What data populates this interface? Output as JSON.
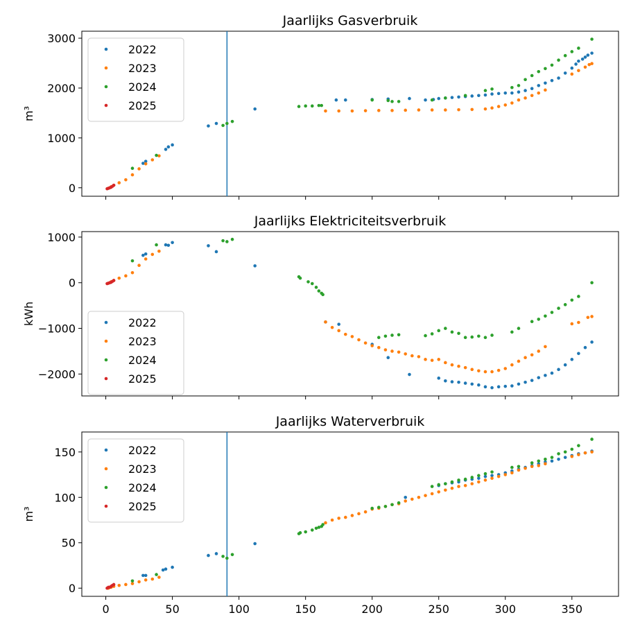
{
  "chart_data": [
    {
      "type": "scatter",
      "title": "Jaarlijks Gasverbruik",
      "ylabel": "m³",
      "xlabel": "",
      "xlim": [
        -18,
        385
      ],
      "ylim": [
        -170,
        3140
      ],
      "yticks": [
        0,
        1000,
        2000,
        3000
      ],
      "xticks": [
        0,
        50,
        100,
        150,
        200,
        250,
        300,
        350
      ],
      "vline_x": 91,
      "legend_position": "top-left",
      "series": [
        {
          "name": "2022",
          "color": "#1f77b4",
          "x": [
            28,
            30,
            45,
            47,
            50,
            77,
            83,
            112,
            173,
            180,
            200,
            212,
            228,
            240,
            246,
            250,
            255,
            260,
            265,
            270,
            275,
            280,
            285,
            290,
            295,
            300,
            305,
            310,
            315,
            320,
            325,
            330,
            335,
            340,
            345,
            350,
            353,
            355,
            358,
            360,
            362,
            365
          ],
          "y": [
            490,
            530,
            770,
            820,
            860,
            1240,
            1290,
            1580,
            1760,
            1760,
            1770,
            1780,
            1790,
            1760,
            1770,
            1790,
            1800,
            1810,
            1820,
            1830,
            1840,
            1850,
            1860,
            1880,
            1890,
            1900,
            1900,
            1920,
            1950,
            1990,
            2050,
            2100,
            2150,
            2200,
            2300,
            2400,
            2480,
            2540,
            2580,
            2620,
            2660,
            2700
          ]
        },
        {
          "name": "2023",
          "color": "#ff7f0e",
          "x": [
            2,
            4,
            6,
            10,
            15,
            20,
            25,
            30,
            35,
            40,
            165,
            175,
            185,
            195,
            205,
            215,
            225,
            235,
            245,
            255,
            265,
            275,
            285,
            290,
            295,
            300,
            305,
            310,
            315,
            320,
            325,
            330,
            350,
            355,
            360,
            363,
            365
          ],
          "y": [
            -10,
            20,
            50,
            100,
            160,
            260,
            380,
            480,
            560,
            640,
            1540,
            1540,
            1540,
            1545,
            1550,
            1550,
            1555,
            1560,
            1560,
            1560,
            1565,
            1570,
            1580,
            1600,
            1630,
            1660,
            1700,
            1760,
            1800,
            1850,
            1900,
            1960,
            2280,
            2350,
            2420,
            2470,
            2490
          ]
        },
        {
          "name": "2024",
          "color": "#2ca02c",
          "x": [
            20,
            38,
            88,
            91,
            95,
            145,
            150,
            155,
            160,
            162,
            200,
            212,
            215,
            220,
            245,
            255,
            270,
            285,
            290,
            305,
            310,
            315,
            320,
            325,
            330,
            335,
            340,
            345,
            350,
            355,
            365
          ],
          "y": [
            390,
            650,
            1250,
            1290,
            1330,
            1630,
            1640,
            1640,
            1650,
            1650,
            1760,
            1750,
            1730,
            1730,
            1760,
            1800,
            1850,
            1950,
            1980,
            2010,
            2050,
            2170,
            2250,
            2330,
            2390,
            2460,
            2560,
            2650,
            2730,
            2800,
            2980
          ]
        },
        {
          "name": "2025",
          "color": "#d62728",
          "x": [
            1,
            2,
            3,
            4,
            5,
            6
          ],
          "y": [
            -20,
            -10,
            0,
            10,
            30,
            50
          ]
        }
      ]
    },
    {
      "type": "scatter",
      "title": "Jaarlijks Elektriciteitsverbruik",
      "ylabel": "kWh",
      "xlabel": "",
      "xlim": [
        -18,
        385
      ],
      "ylim": [
        -2480,
        1120
      ],
      "yticks": [
        -2000,
        -1000,
        0,
        1000
      ],
      "xticks": [
        0,
        50,
        100,
        150,
        200,
        250,
        300,
        350
      ],
      "vline_x": null,
      "legend_position": "lower-left",
      "series": [
        {
          "name": "2022",
          "color": "#1f77b4",
          "x": [
            28,
            30,
            45,
            47,
            50,
            77,
            83,
            112,
            165,
            175,
            200,
            212,
            228,
            250,
            255,
            260,
            265,
            270,
            275,
            280,
            285,
            290,
            295,
            300,
            305,
            310,
            315,
            320,
            325,
            330,
            335,
            340,
            345,
            350,
            355,
            360,
            365
          ],
          "y": [
            600,
            630,
            830,
            820,
            880,
            810,
            680,
            370,
            -860,
            -910,
            -1350,
            -1640,
            -2010,
            -2090,
            -2150,
            -2170,
            -2180,
            -2200,
            -2220,
            -2240,
            -2280,
            -2300,
            -2280,
            -2270,
            -2260,
            -2220,
            -2180,
            -2140,
            -2080,
            -2030,
            -1980,
            -1900,
            -1800,
            -1680,
            -1550,
            -1420,
            -1300
          ]
        },
        {
          "name": "2023",
          "color": "#ff7f0e",
          "x": [
            2,
            4,
            6,
            10,
            15,
            20,
            25,
            30,
            35,
            40,
            165,
            170,
            175,
            180,
            185,
            190,
            195,
            200,
            205,
            210,
            215,
            220,
            225,
            230,
            235,
            240,
            245,
            250,
            255,
            260,
            265,
            270,
            275,
            280,
            285,
            290,
            295,
            300,
            305,
            310,
            315,
            320,
            325,
            330,
            350,
            355,
            362,
            365
          ],
          "y": [
            -10,
            20,
            50,
            100,
            150,
            220,
            380,
            520,
            620,
            690,
            -860,
            -980,
            -1050,
            -1130,
            -1180,
            -1250,
            -1320,
            -1380,
            -1420,
            -1470,
            -1500,
            -1520,
            -1560,
            -1600,
            -1620,
            -1680,
            -1700,
            -1680,
            -1750,
            -1800,
            -1830,
            -1860,
            -1900,
            -1930,
            -1950,
            -1950,
            -1920,
            -1880,
            -1800,
            -1720,
            -1640,
            -1580,
            -1500,
            -1400,
            -900,
            -870,
            -760,
            -740
          ]
        },
        {
          "name": "2024",
          "color": "#2ca02c",
          "x": [
            20,
            38,
            88,
            91,
            95,
            145,
            146,
            152,
            155,
            158,
            160,
            162,
            163,
            205,
            210,
            215,
            220,
            240,
            245,
            250,
            255,
            260,
            265,
            270,
            275,
            280,
            285,
            290,
            305,
            310,
            320,
            325,
            330,
            335,
            340,
            345,
            350,
            355,
            365
          ],
          "y": [
            480,
            830,
            920,
            900,
            950,
            130,
            100,
            20,
            -20,
            -100,
            -180,
            -230,
            -260,
            -1200,
            -1170,
            -1150,
            -1140,
            -1160,
            -1120,
            -1050,
            -1000,
            -1080,
            -1110,
            -1200,
            -1190,
            -1170,
            -1200,
            -1150,
            -1080,
            -1000,
            -850,
            -800,
            -730,
            -650,
            -560,
            -480,
            -380,
            -300,
            0
          ]
        },
        {
          "name": "2025",
          "color": "#d62728",
          "x": [
            1,
            2,
            3,
            4,
            5,
            6
          ],
          "y": [
            -20,
            -10,
            0,
            10,
            30,
            50
          ]
        }
      ]
    },
    {
      "type": "scatter",
      "title": "Jaarlijks Waterverbruik",
      "ylabel": "m³",
      "xlabel": "",
      "xlim": [
        -18,
        385
      ],
      "ylim": [
        -9,
        172
      ],
      "yticks": [
        0,
        50,
        100,
        150
      ],
      "xticks": [
        0,
        50,
        100,
        150,
        200,
        250,
        300,
        350
      ],
      "vline_x": 91,
      "legend_position": "top-left",
      "series": [
        {
          "name": "2022",
          "color": "#1f77b4",
          "x": [
            28,
            30,
            43,
            45,
            50,
            77,
            83,
            112,
            225,
            250,
            255,
            260,
            265,
            270,
            275,
            280,
            285,
            290,
            295,
            300,
            305,
            310,
            315,
            320,
            325,
            330,
            335,
            340,
            345,
            350,
            355,
            360,
            365
          ],
          "y": [
            14,
            14,
            20,
            21,
            23,
            36,
            38,
            49,
            100,
            113,
            115,
            116,
            117,
            119,
            120,
            121,
            123,
            124,
            125,
            127,
            129,
            131,
            133,
            135,
            137,
            139,
            140,
            142,
            144,
            146,
            148,
            149,
            151
          ]
        },
        {
          "name": "2023",
          "color": "#ff7f0e",
          "x": [
            2,
            4,
            6,
            10,
            15,
            20,
            25,
            30,
            35,
            40,
            165,
            170,
            175,
            180,
            185,
            190,
            195,
            200,
            205,
            210,
            215,
            220,
            225,
            230,
            235,
            240,
            245,
            250,
            255,
            260,
            265,
            270,
            275,
            280,
            285,
            290,
            295,
            300,
            305,
            310,
            315,
            320,
            325,
            330,
            350,
            355,
            360,
            365
          ],
          "y": [
            0,
            1,
            2,
            3,
            4,
            5,
            7,
            9,
            10,
            12,
            72,
            75,
            77,
            78,
            80,
            82,
            84,
            87,
            88,
            90,
            92,
            93,
            96,
            98,
            100,
            102,
            104,
            106,
            108,
            110,
            112,
            113,
            115,
            117,
            119,
            121,
            123,
            125,
            127,
            130,
            132,
            134,
            135,
            137,
            145,
            147,
            149,
            150
          ]
        },
        {
          "name": "2024",
          "color": "#2ca02c",
          "x": [
            20,
            38,
            88,
            91,
            95,
            145,
            146,
            150,
            155,
            158,
            160,
            162,
            163,
            200,
            205,
            210,
            215,
            220,
            245,
            250,
            255,
            260,
            265,
            270,
            275,
            280,
            285,
            290,
            305,
            310,
            320,
            325,
            330,
            335,
            340,
            345,
            350,
            355,
            365
          ],
          "y": [
            8,
            15,
            35,
            33,
            37,
            60,
            61,
            62,
            64,
            66,
            67,
            68,
            70,
            88,
            89,
            90,
            92,
            94,
            112,
            114,
            115,
            117,
            119,
            120,
            122,
            124,
            126,
            128,
            133,
            134,
            138,
            140,
            142,
            144,
            148,
            150,
            153,
            157,
            164
          ]
        },
        {
          "name": "2025",
          "color": "#d62728",
          "x": [
            1,
            2,
            3,
            4,
            5,
            6
          ],
          "y": [
            0,
            1,
            1,
            2,
            3,
            4
          ]
        }
      ]
    }
  ]
}
